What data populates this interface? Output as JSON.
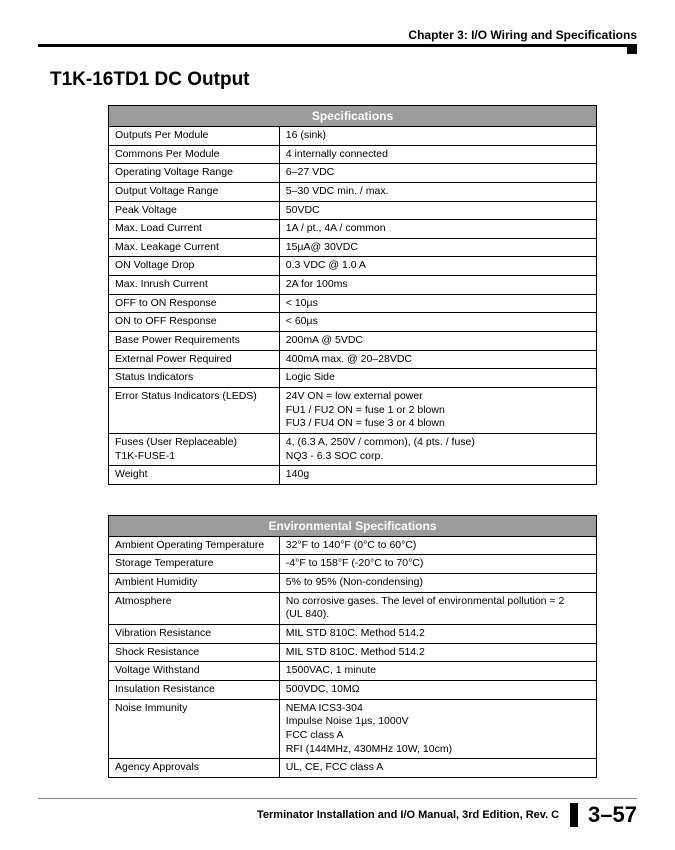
{
  "chapter_header": "Chapter 3: I/O Wiring and Specifications",
  "page_title": "T1K-16TD1 DC Output",
  "specs_table": {
    "title": "Specifications",
    "rows": [
      {
        "label": "Outputs Per Module",
        "value": "16 (sink)"
      },
      {
        "label": "Commons Per Module",
        "value": "4 internally connected"
      },
      {
        "label": "Operating Voltage Range",
        "value": "6–27 VDC"
      },
      {
        "label": "Output Voltage Range",
        "value": "5–30 VDC min. / max."
      },
      {
        "label": "Peak Voltage",
        "value": "50VDC"
      },
      {
        "label": "Max.  Load Current",
        "value": "1A / pt., 4A / common"
      },
      {
        "label": "Max.  Leakage Current",
        "value": "15µA@ 30VDC"
      },
      {
        "label": "ON Voltage Drop",
        "value": "0.3 VDC @ 1.0 A"
      },
      {
        "label": "Max.  Inrush Current",
        "value": "2A for 100ms"
      },
      {
        "label": "OFF to ON Response",
        "value": "< 10µs"
      },
      {
        "label": "ON to OFF Response",
        "value": "< 60µs"
      },
      {
        "label": "Base Power Requirements",
        "value": "200mA @ 5VDC"
      },
      {
        "label": "External Power Required",
        "value": "400mA max.  @ 20–28VDC"
      },
      {
        "label": "Status Indicators",
        "value": "Logic Side"
      },
      {
        "label": "Error Status Indicators (LEDS)",
        "value": "24V ON = low external power\nFU1 / FU2 ON = fuse 1 or 2 blown\nFU3 / FU4 ON = fuse 3 or 4 blown"
      },
      {
        "label": "Fuses (User Replaceable)\nT1K-FUSE-1",
        "value": "4, (6.3 A, 250V / common), (4 pts. / fuse)\nNQ3 - 6.3 SOC corp."
      },
      {
        "label": "Weight",
        "value": "140g"
      }
    ]
  },
  "env_table": {
    "title": "Environmental Specifications",
    "rows": [
      {
        "label": "Ambient Operating Temperature",
        "value": "32°F to 140°F (0°C to 60°C)"
      },
      {
        "label": "Storage Temperature",
        "value": "-4°F to 158°F (-20°C to 70°C)"
      },
      {
        "label": "Ambient Humidity",
        "value": "5% to 95% (Non-condensing)"
      },
      {
        "label": "Atmosphere",
        "value": "No corrosive gases.  The level of environmental pollution = 2\n(UL 840)."
      },
      {
        "label": "Vibration Resistance",
        "value": "MIL STD 810C.  Method 514.2"
      },
      {
        "label": "Shock Resistance",
        "value": "MIL STD 810C.  Method 514.2"
      },
      {
        "label": "Voltage Withstand",
        "value": "1500VAC, 1 minute"
      },
      {
        "label": "Insulation Resistance",
        "value": "500VDC, 10MΩ"
      },
      {
        "label": "Noise Immunity",
        "value": "NEMA ICS3-304\nImpulse Noise 1µs, 1000V\nFCC class A\nRFI (144MHz, 430MHz 10W, 10cm)"
      },
      {
        "label": "Agency Approvals",
        "value": "UL, CE, FCC class A"
      }
    ]
  },
  "footer_text": "Terminator Installation and I/O Manual, 3rd Edition, Rev. C",
  "page_number": "3–57"
}
